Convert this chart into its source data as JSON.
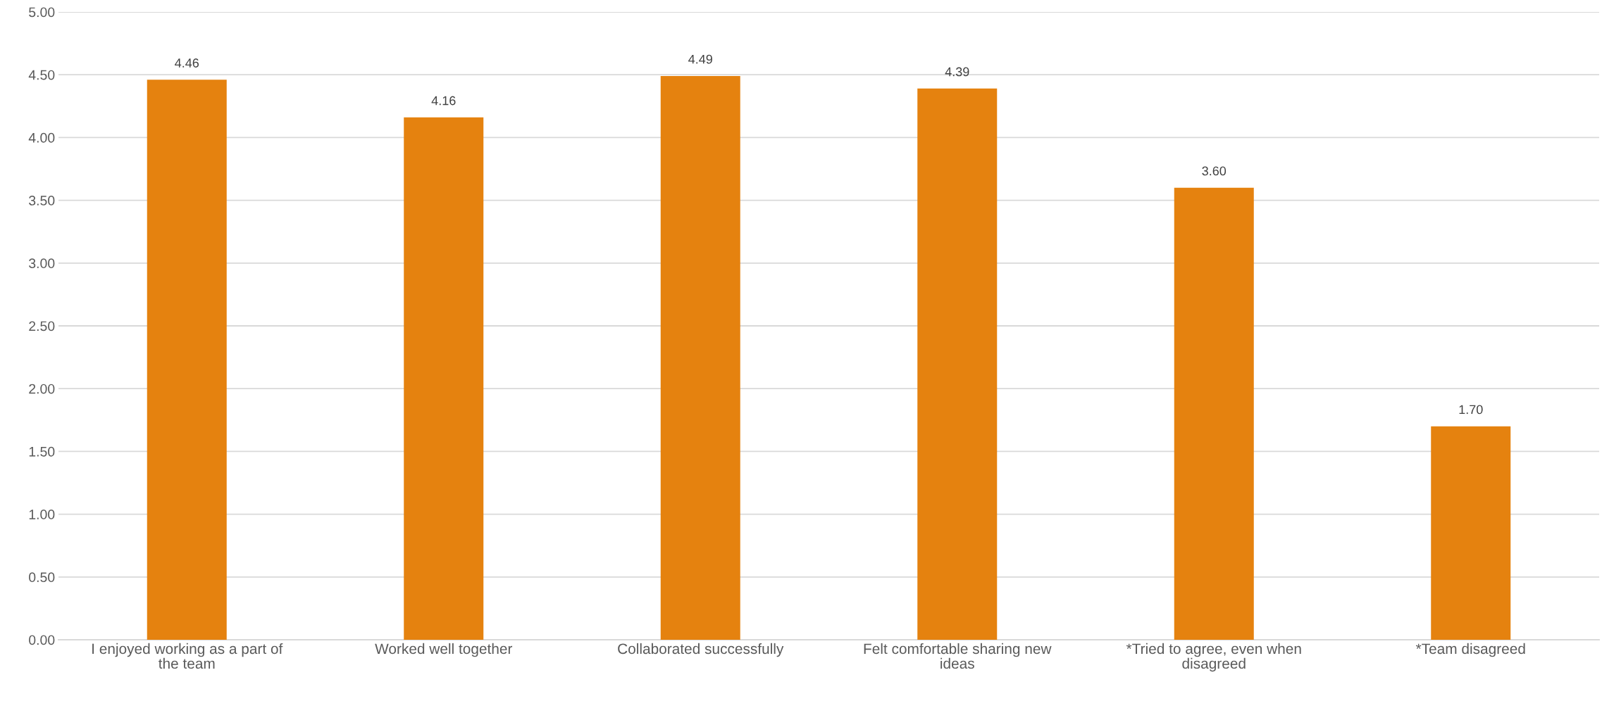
{
  "chart_data": {
    "type": "bar",
    "categories": [
      "I enjoyed working as a part of the team",
      "Worked well together",
      "Collaborated successfully",
      "Felt comfortable sharing new ideas",
      "*Tried to agree, even when disagreed",
      "*Team disagreed"
    ],
    "values": [
      4.46,
      4.16,
      4.49,
      4.39,
      3.6,
      1.7
    ],
    "color": "#e5820f",
    "ylim": [
      0,
      5
    ],
    "yticks": [
      {
        "value": 0,
        "label": "0.00"
      },
      {
        "value": 0.5,
        "label": "0.50"
      },
      {
        "value": 1,
        "label": "1.00"
      },
      {
        "value": 1.5,
        "label": "1.50"
      },
      {
        "value": 2,
        "label": "2.00"
      },
      {
        "value": 2.5,
        "label": "2.50"
      },
      {
        "value": 3,
        "label": "3.00"
      },
      {
        "value": 3.5,
        "label": "3.50"
      },
      {
        "value": 4,
        "label": "4.00"
      },
      {
        "value": 4.5,
        "label": "4.50"
      },
      {
        "value": 5,
        "label": "5.00"
      }
    ],
    "grid": "y",
    "value_labels": [
      "4.46",
      "4.16",
      "4.49",
      "4.39",
      "3.60",
      "1.70"
    ]
  }
}
